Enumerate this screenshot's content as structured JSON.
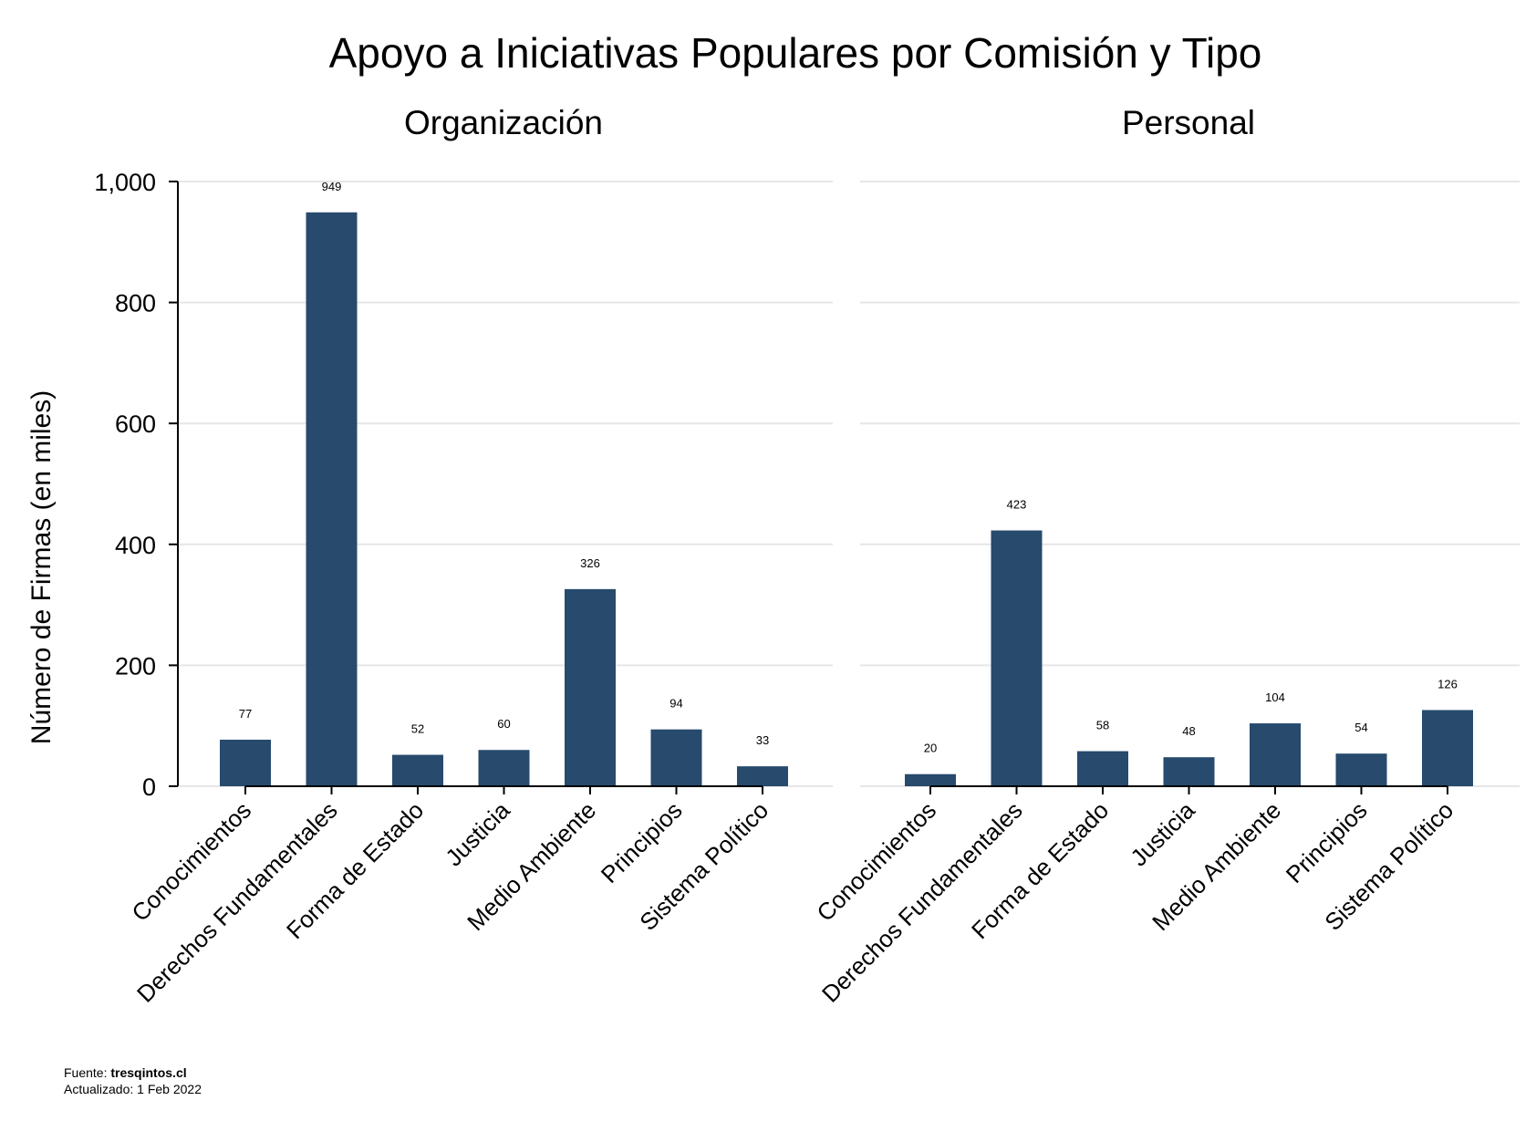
{
  "chart_data": {
    "type": "bar",
    "title": "Apoyo a Iniciativas Populares por Comisión y Tipo",
    "ylabel": "Número de Firmas (en miles)",
    "ylim": [
      0,
      1000
    ],
    "yticks": [
      0,
      200,
      400,
      600,
      800,
      1000
    ],
    "ytick_labels": [
      "0",
      "200",
      "400",
      "600",
      "800",
      "1,000"
    ],
    "grid": true,
    "color": "#274a6d",
    "categories": [
      "Conocimientos",
      "Derechos Fundamentales",
      "Forma de Estado",
      "Justicia",
      "Medio Ambiente",
      "Principios",
      "Sistema Político"
    ],
    "panels": [
      {
        "title": "Organización",
        "values": [
          77,
          949,
          52,
          60,
          326,
          94,
          33
        ]
      },
      {
        "title": "Personal",
        "values": [
          20,
          423,
          58,
          48,
          104,
          54,
          126
        ]
      }
    ]
  },
  "footer": {
    "source_label": "Fuente: ",
    "source_value": "tresqintos.cl",
    "updated_text": "Actualizado:  1 Feb 2022"
  }
}
